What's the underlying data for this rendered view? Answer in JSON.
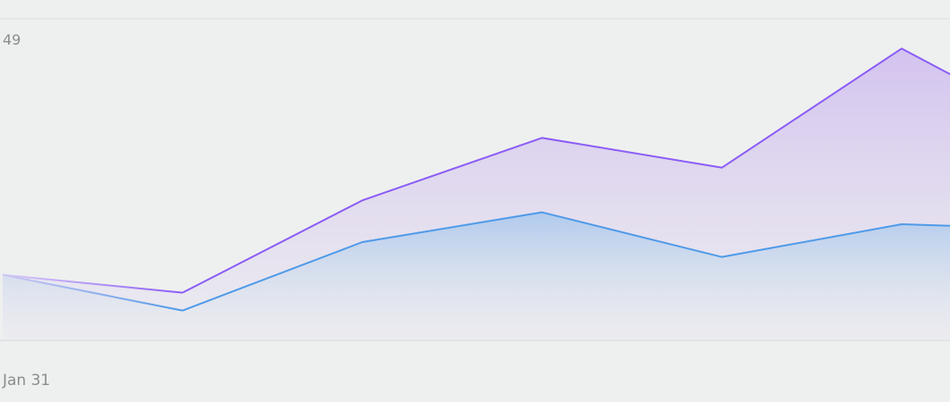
{
  "chart_data": {
    "type": "area",
    "x": [
      "Jan 31",
      "",
      "",
      "",
      "",
      ""
    ],
    "x_visible_tick_label": "Jan 31",
    "y_visible_tick_label": "49",
    "ylim": [
      0,
      54
    ],
    "grid": true,
    "series": [
      {
        "color": "#8b5cf6",
        "values": [
          11,
          8,
          23.5,
          34,
          29,
          49
        ]
      },
      {
        "color": "#4f9ae8",
        "values": [
          11,
          5,
          16.5,
          21.5,
          14,
          19.5
        ]
      }
    ],
    "trailing_values": [
      [
        33
      ],
      [
        18.5
      ]
    ],
    "colors": {
      "background": "#eef0ef",
      "grid": "#dcdedd",
      "axis_text": "#8a8d8c",
      "purple_line": "#8b5cf6",
      "blue_line": "#4f9ae8"
    }
  }
}
